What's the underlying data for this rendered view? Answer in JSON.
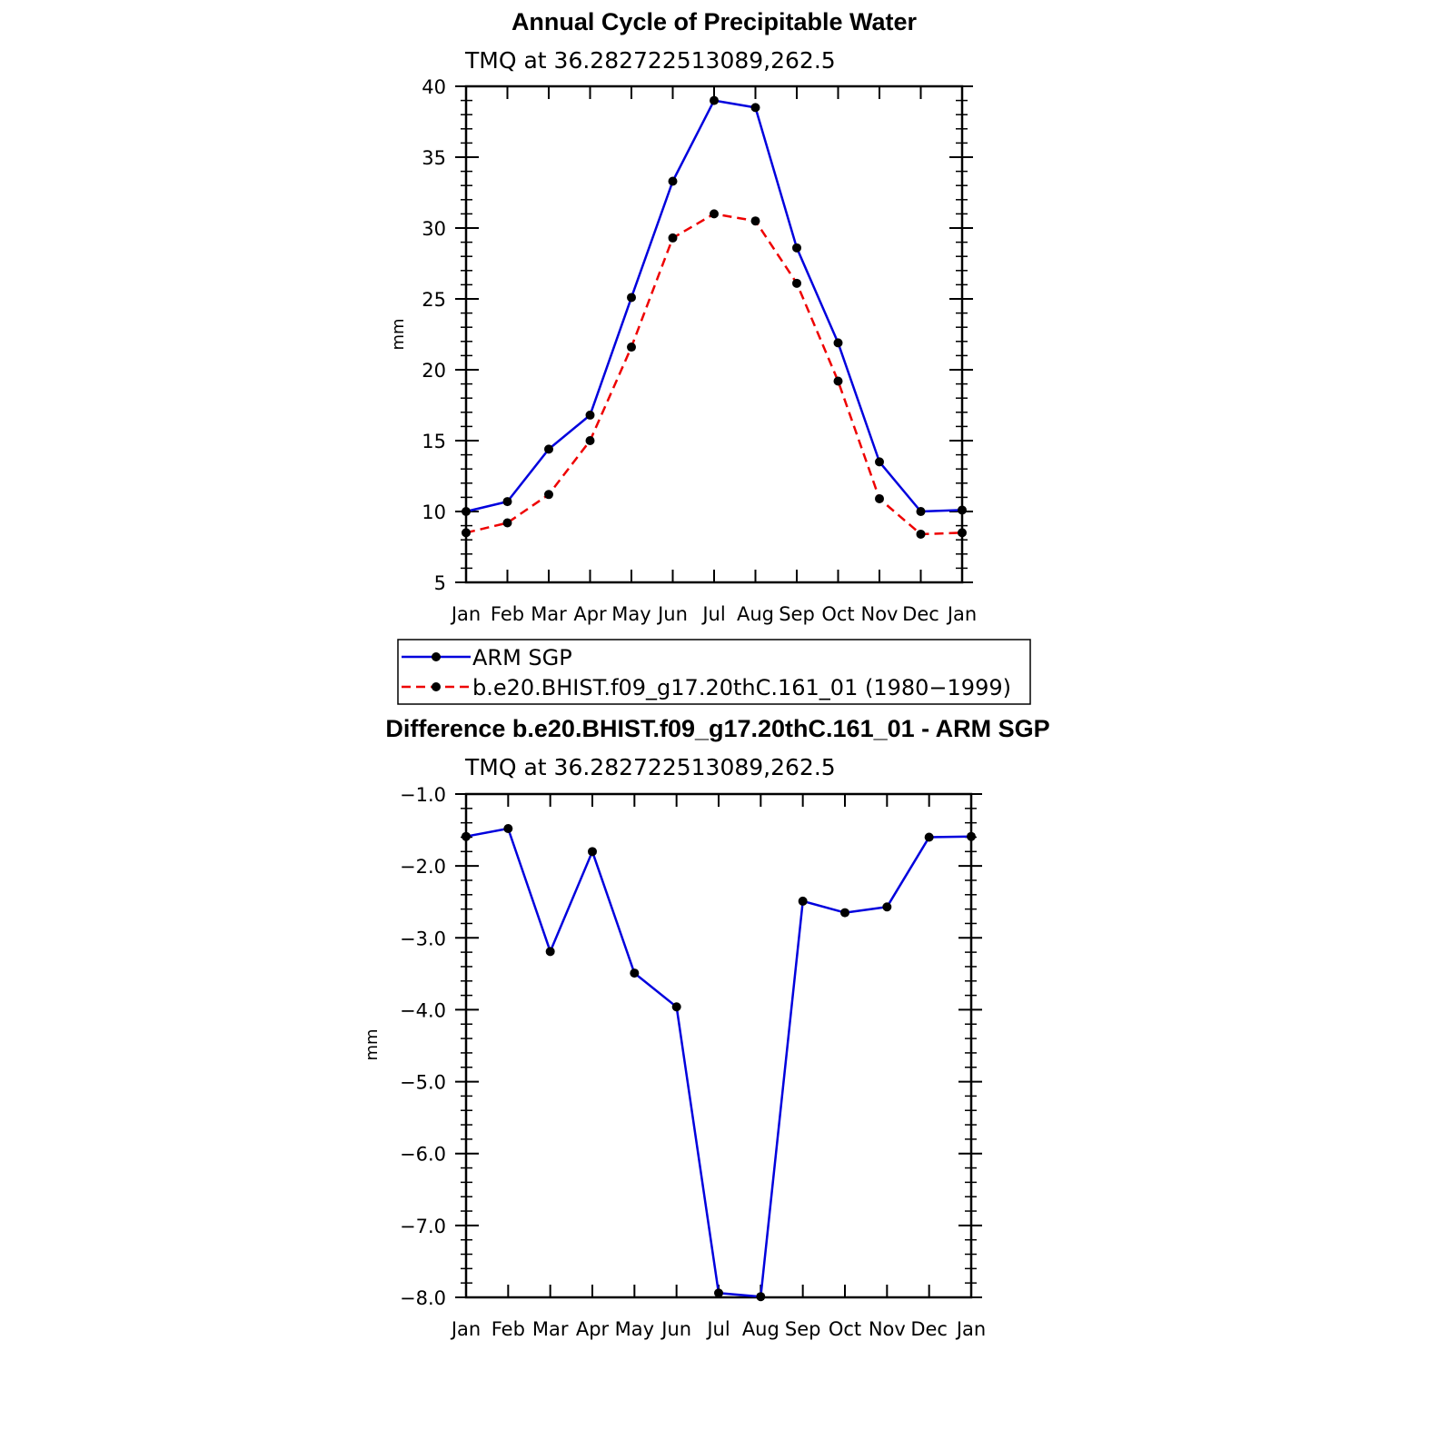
{
  "chart_data": [
    {
      "type": "line",
      "title": "Annual Cycle of Precipitable Water",
      "subtitle": "TMQ  at  36.282722513089,262.5",
      "ylabel": "mm",
      "xlabel": "",
      "ylim": [
        5,
        40
      ],
      "yticks": [
        5,
        10,
        15,
        20,
        25,
        30,
        35,
        40
      ],
      "ytick_labels": [
        "5",
        "10",
        "15",
        "20",
        "25",
        "30",
        "35",
        "40"
      ],
      "categories": [
        "Jan",
        "Feb",
        "Mar",
        "Apr",
        "May",
        "Jun",
        "Jul",
        "Aug",
        "Sep",
        "Oct",
        "Nov",
        "Dec",
        "Jan"
      ],
      "series": [
        {
          "name": "ARM  SGP",
          "color": "#0000dd",
          "dash": "solid",
          "values": [
            10.0,
            10.7,
            14.4,
            16.8,
            25.1,
            33.3,
            39.0,
            38.5,
            28.6,
            21.9,
            13.5,
            10.0,
            10.1
          ]
        },
        {
          "name": "b.e20.BHIST.f09_g17.20thC.161_01  (1980−1999)",
          "color": "#ee0000",
          "dash": "dashed",
          "values": [
            8.5,
            9.2,
            11.2,
            15.0,
            21.6,
            29.3,
            31.0,
            30.5,
            26.1,
            19.2,
            10.9,
            8.4,
            8.5
          ]
        }
      ],
      "legend": "below"
    },
    {
      "type": "line",
      "title": "Difference b.e20.BHIST.f09_g17.20thC.161_01 - ARM SGP",
      "subtitle": "TMQ  at  36.282722513089,262.5",
      "ylabel": "mm",
      "xlabel": "",
      "ylim": [
        -8.0,
        -1.0
      ],
      "yticks": [
        -8,
        -7,
        -6,
        -5,
        -4,
        -3,
        -2,
        -1
      ],
      "ytick_labels": [
        "−8.0",
        "−7.0",
        "−6.0",
        "−5.0",
        "−4.0",
        "−3.0",
        "−2.0",
        "−1.0"
      ],
      "categories": [
        "Jan",
        "Feb",
        "Mar",
        "Apr",
        "May",
        "Jun",
        "Jul",
        "Aug",
        "Sep",
        "Oct",
        "Nov",
        "Dec",
        "Jan"
      ],
      "series": [
        {
          "name": "Difference",
          "color": "#0000dd",
          "dash": "solid",
          "values": [
            -1.59,
            -1.48,
            -3.19,
            -1.8,
            -3.49,
            -3.96,
            -7.94,
            -7.99,
            -2.49,
            -2.65,
            -2.57,
            -1.6,
            -1.59
          ]
        }
      ]
    }
  ]
}
